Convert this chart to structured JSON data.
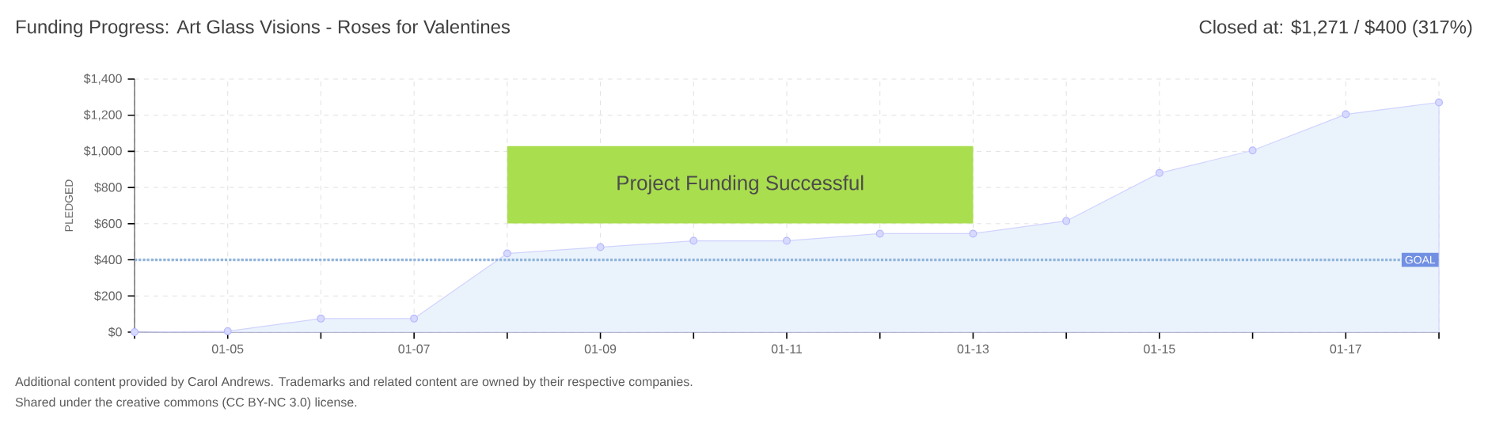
{
  "chart_data": {
    "type": "area",
    "title": "Funding Progress: Art Glass Visions - Roses for Valentines",
    "subtitle": "Closed at: $1,271 / $400 (317%)",
    "ylabel": "PLEDGED",
    "categories": [
      null,
      "01-05",
      null,
      "01-07",
      null,
      "01-09",
      null,
      "01-11",
      null,
      "01-13",
      null,
      "01-15",
      null,
      "01-17",
      null
    ],
    "series": [
      {
        "color": "#eaf3fc",
        "values": [
          0,
          5,
          75,
          75,
          435,
          470,
          505,
          505,
          545,
          545,
          615,
          880,
          1005,
          1205,
          1271
        ]
      }
    ],
    "ylim": [
      0,
      1400
    ],
    "yticks": [
      {
        "value": 0,
        "label": "$0"
      },
      {
        "value": 200,
        "label": "$200"
      },
      {
        "value": 400,
        "label": "$400"
      },
      {
        "value": 600,
        "label": "$600"
      },
      {
        "value": 800,
        "label": "$800"
      },
      {
        "value": 1000,
        "label": "$1,000"
      },
      {
        "value": 1200,
        "label": "$1,200"
      },
      {
        "value": 1400,
        "label": "$1,400"
      }
    ],
    "grid": true,
    "marker": "circle",
    "ref_lines": [
      {
        "axis": "y",
        "value": 400,
        "label": "GOAL",
        "color": "#8fb4dc",
        "line_style": "dotted"
      }
    ],
    "annotations": [
      "Project Funding Successful",
      "Additional content provided by Carol Andrews. Trademarks and related content are owned by their respective companies.",
      "Shared under the creative commons (CC BY-NC 3.0) license."
    ]
  }
}
